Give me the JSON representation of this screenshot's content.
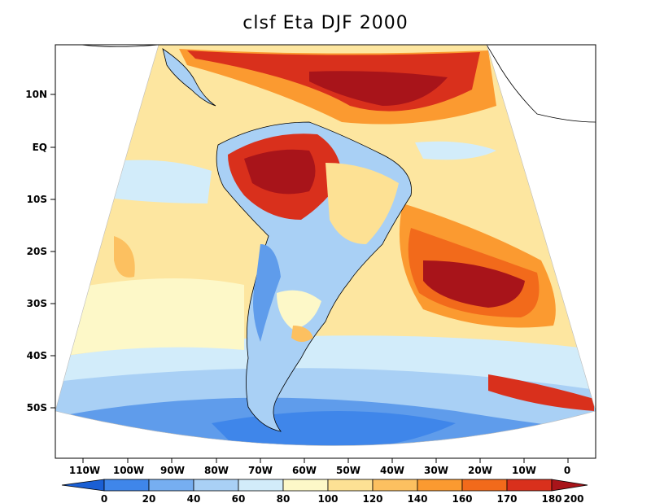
{
  "title": "clsf Eta DJF 2000",
  "map": {
    "lat_labels": [
      "10N",
      "EQ",
      "10S",
      "20S",
      "30S",
      "40S",
      "50S"
    ],
    "lon_labels": [
      "110W",
      "100W",
      "90W",
      "80W",
      "70W",
      "60W",
      "50W",
      "40W",
      "30W",
      "20W",
      "10W",
      "0"
    ]
  },
  "colorbar": {
    "labels": [
      "0",
      "20",
      "40",
      "60",
      "80",
      "100",
      "120",
      "140",
      "160",
      "170",
      "180",
      "200"
    ],
    "colors": [
      "#1a5fd4",
      "#3f86ea",
      "#76aef1",
      "#a9d0f5",
      "#d2ecfa",
      "#fdf8c8",
      "#fde194",
      "#fcc060",
      "#fb9a30",
      "#f26a1b",
      "#d9301c",
      "#a8141a"
    ]
  }
}
